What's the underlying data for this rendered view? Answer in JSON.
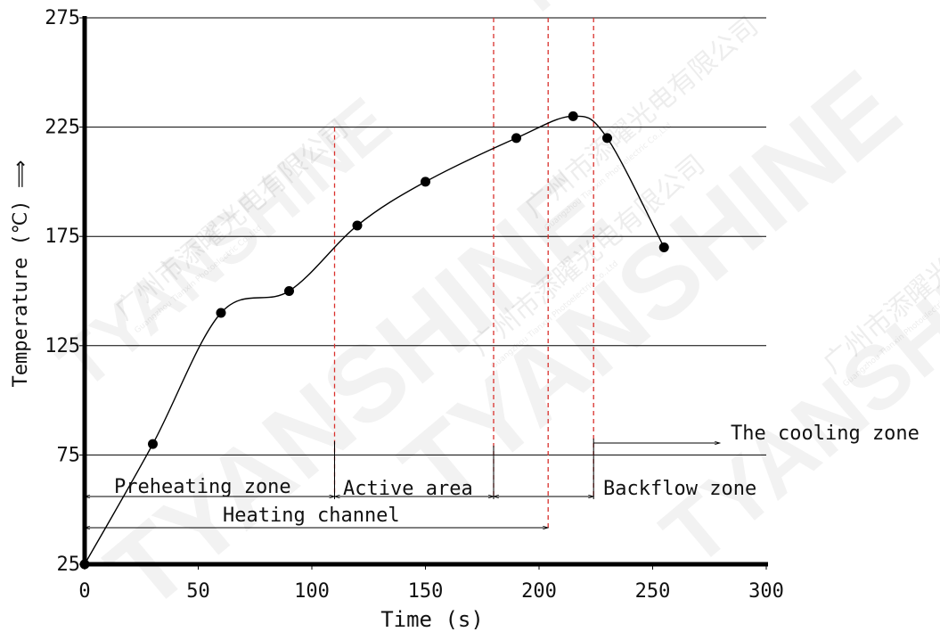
{
  "chart_data": {
    "type": "line",
    "xlabel": "Time (s)",
    "ylabel": "Temperature (℃) ⟹",
    "xlim": [
      0,
      300
    ],
    "ylim": [
      25,
      275
    ],
    "xticks": [
      "0",
      "50",
      "100",
      "150",
      "200",
      "250",
      "300"
    ],
    "yticks": [
      "25",
      "75",
      "125",
      "175",
      "225",
      "275"
    ],
    "grid": "horizontal",
    "series": [
      {
        "x": [
          0,
          30,
          60,
          90,
          120,
          150,
          190,
          215,
          230,
          255
        ],
        "y": [
          25,
          80,
          140,
          150,
          180,
          200,
          220,
          230,
          220,
          170
        ]
      }
    ],
    "zone_boundaries": [
      110,
      180,
      204,
      224
    ],
    "annotations": {
      "preheating": "Preheating zone",
      "active": "Active area",
      "backflow": "Backflow zone",
      "heating": "Heating channel",
      "cooling": "The cooling zone"
    },
    "colors": {
      "curve": "#000000",
      "zone_line": "#d9302c",
      "grid": "#000000"
    }
  },
  "watermark": {
    "brand": "TYANSHINE",
    "company_cn": "广州市添曜光电有限公司",
    "company_en": "Guangzhou Tianxin Photoelectric Co.,Ltd"
  }
}
